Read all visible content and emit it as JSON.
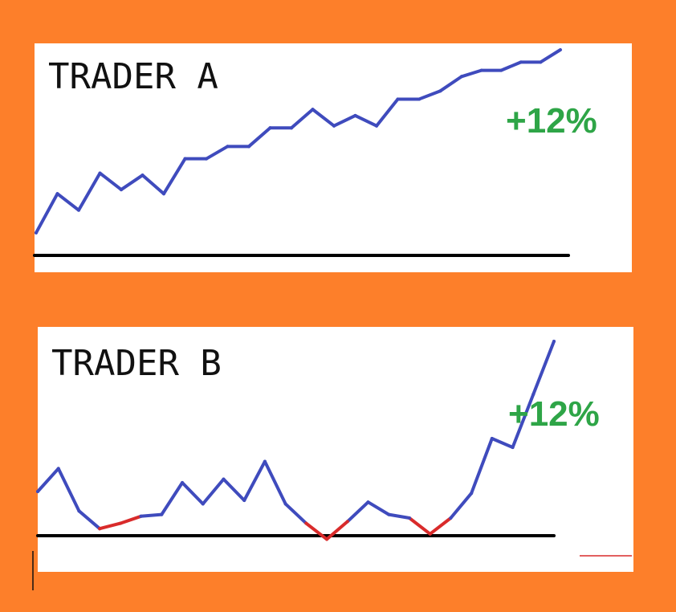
{
  "colors": {
    "background": "#fd7f2a",
    "panel": "#ffffff",
    "up_line": "#3f4bbd",
    "down_line": "#d92b2b",
    "baseline": "#000000",
    "gain_text": "#2ea547"
  },
  "chart_data": [
    {
      "type": "line",
      "title": "TRADER A",
      "annotation": "+12%",
      "baseline": 0,
      "ylim": [
        0,
        100
      ],
      "x": [
        0,
        5,
        10,
        15,
        20,
        25,
        30,
        35,
        40,
        45,
        50,
        55,
        60,
        65,
        70,
        75,
        80,
        85,
        90,
        95,
        100
      ],
      "series": [
        {
          "values": [
            11,
            30,
            22,
            40,
            32,
            39,
            30,
            47,
            47,
            53,
            53,
            62,
            62,
            71,
            63,
            68,
            63,
            76,
            76,
            80,
            87
          ]
        }
      ],
      "tail": [
        87,
        90,
        90,
        94,
        94,
        100
      ]
    },
    {
      "type": "line",
      "title": "TRADER B",
      "annotation": "+12%",
      "baseline": 0,
      "ylim": [
        -10,
        100
      ],
      "x": [
        0,
        4,
        8,
        12,
        16,
        20,
        24,
        28,
        32,
        36,
        40,
        44,
        48,
        52,
        56,
        60,
        64,
        68,
        72,
        76,
        80,
        84,
        88,
        92,
        96,
        100
      ],
      "series": [
        {
          "values": [
            15,
            28,
            4,
            -6,
            -3,
            1,
            2,
            20,
            8,
            22,
            10,
            32,
            8,
            -3,
            -12,
            -2,
            9,
            2,
            0,
            -9,
            0,
            14,
            45,
            40,
            70,
            100
          ]
        }
      ]
    }
  ]
}
